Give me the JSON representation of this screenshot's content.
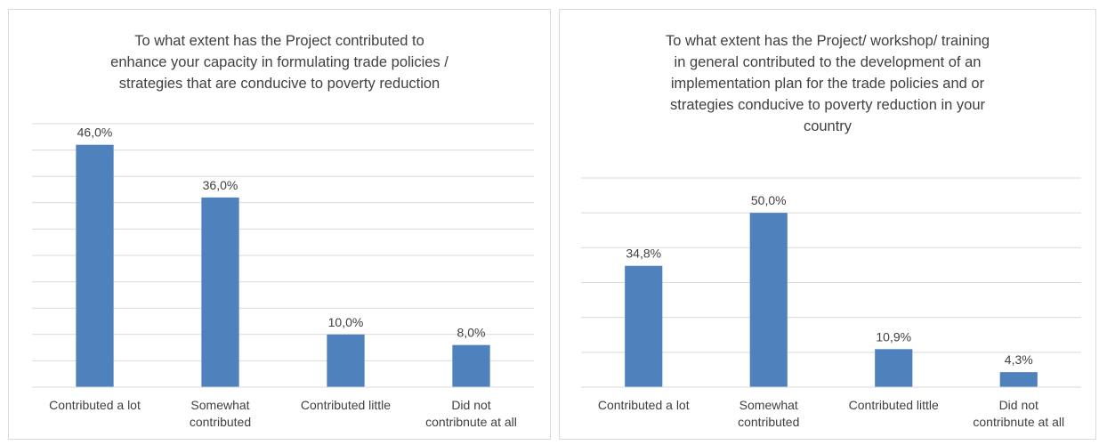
{
  "chart_data": [
    {
      "type": "bar",
      "title_lines": [
        "To what extent has the Project contributed to",
        "enhance your capacity in formulating trade policies /",
        "strategies that are conducive to poverty reduction"
      ],
      "categories": [
        [
          "Contributed a lot"
        ],
        [
          "Somewhat",
          "contributed"
        ],
        [
          "Contributed little"
        ],
        [
          "Did not",
          "contribnute at all"
        ]
      ],
      "values": [
        46.0,
        36.0,
        10.0,
        8.0
      ],
      "data_labels": [
        "46,0%",
        "36,0%",
        "10,0%",
        "8,0%"
      ],
      "ylim": [
        0,
        50
      ],
      "grid": true,
      "bar_color": "#4f81bd",
      "grid_color": "#d9d9d9"
    },
    {
      "type": "bar",
      "title_lines": [
        "To what extent has the Project/ workshop/ training",
        "in general contributed to the development of an",
        "implementation plan for the trade policies and or",
        "strategies conducive to poverty reduction in your",
        "country"
      ],
      "categories": [
        [
          "Contributed a lot"
        ],
        [
          "Somewhat",
          "contributed"
        ],
        [
          "Contributed little"
        ],
        [
          "Did not",
          "contribnute at all"
        ]
      ],
      "values": [
        34.8,
        50.0,
        10.9,
        4.3
      ],
      "data_labels": [
        "34,8%",
        "50,0%",
        "10,9%",
        "4,3%"
      ],
      "ylim": [
        0,
        60
      ],
      "grid": true,
      "bar_color": "#4f81bd",
      "grid_color": "#d9d9d9"
    }
  ]
}
